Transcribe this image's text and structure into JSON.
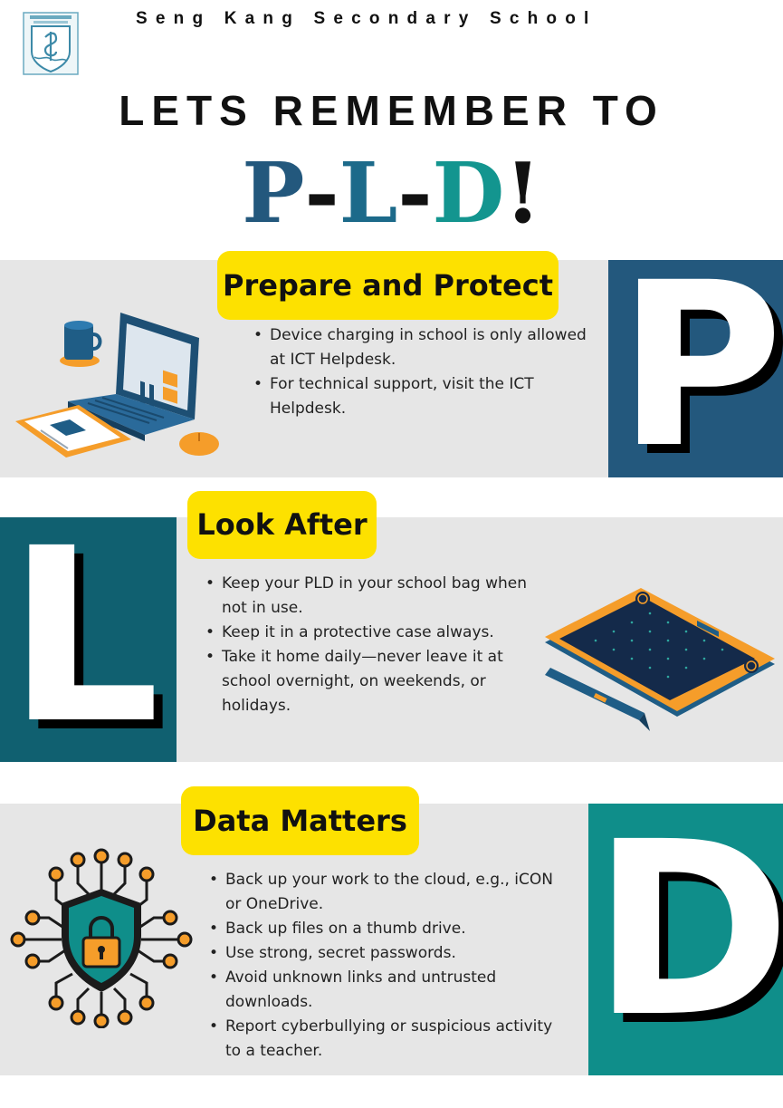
{
  "header": {
    "school_name": "Seng Kang Secondary School",
    "headline": "LETS REMEMBER TO",
    "pld": {
      "p": "P",
      "dash1": "-",
      "l": "L",
      "dash2": "-",
      "d": "D",
      "exclaim": "!"
    }
  },
  "sections": {
    "p": {
      "heading": "Prepare and Protect",
      "letter": "P",
      "bullets": [
        "Device charging in school is only allowed at ICT Helpdesk.",
        "For technical support, visit the ICT Helpdesk."
      ]
    },
    "l": {
      "heading": "Look After",
      "letter": "L",
      "bullets": [
        "Keep your PLD in your school bag when not in use.",
        "Keep it in a protective case always.",
        "Take it home daily—never leave it at school overnight, on weekends, or holidays."
      ]
    },
    "d": {
      "heading": "Data Matters",
      "letter": "D",
      "bullets": [
        "Back up your work to the cloud, e.g., iCON or OneDrive.",
        "Back up files on a thumb drive.",
        "Use strong, secret passwords.",
        "Avoid unknown links and untrusted downloads.",
        "Report cyberbullying or suspicious activity to a teacher."
      ]
    }
  },
  "icons": [
    "school-crest-icon",
    "laptop-desk-icon",
    "drawing-tablet-icon",
    "cyber-lock-icon"
  ],
  "colors": {
    "p_block": "#23587d",
    "l_block": "#106070",
    "d_block": "#0f8e8a",
    "pill": "#fde100",
    "band": "#e6e6e6",
    "orange": "#f59d2a"
  }
}
